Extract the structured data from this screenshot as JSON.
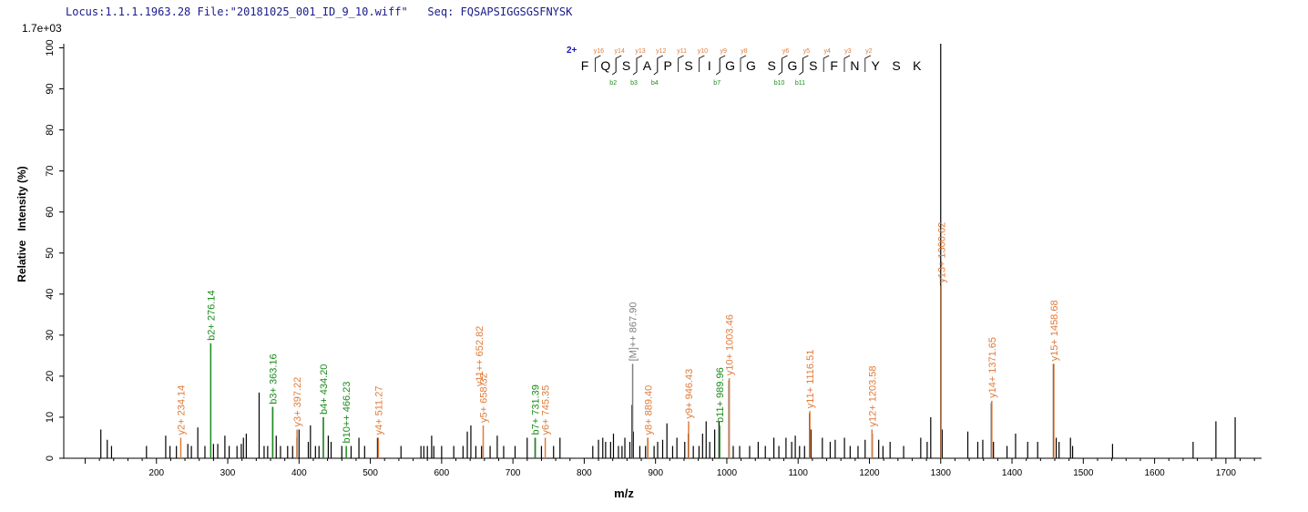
{
  "header": {
    "locus_label": "Locus:1.1.1.1963.28",
    "file_label": "File:\"20181025_001_ID_9_10.wiff\"",
    "seq_label": "Seq:",
    "seq_value": "FQSAPSIGGSGSFNYSK"
  },
  "colors": {
    "peak": "#000000",
    "y_ion": "#e07b39",
    "b_ion": "#1a8c1a",
    "precursor": "#7f7f7f",
    "charge": "#1a1ab4"
  },
  "chart_data": {
    "type": "bar",
    "title": "",
    "scale_label": "1.7e+03",
    "xlabel": "m/z",
    "ylabel": "Relative   Intensity (%)",
    "xlim": [
      70,
      1750
    ],
    "ylim": [
      0,
      101
    ],
    "xticks": [
      200,
      300,
      400,
      500,
      600,
      700,
      800,
      900,
      1000,
      1100,
      1200,
      1300,
      1400,
      1500,
      1600,
      1700
    ],
    "yticks": [
      0,
      10,
      20,
      30,
      40,
      50,
      60,
      70,
      80,
      90,
      100
    ],
    "sequence": {
      "charge": "2+",
      "residues": [
        "F",
        "Q",
        "S",
        "A",
        "P",
        "S",
        "I",
        "G",
        "G",
        "S",
        "G",
        "S",
        "F",
        "N",
        "Y",
        "S",
        "K"
      ],
      "y_labels": [
        "y16",
        "y14",
        "y13",
        "y12",
        "y11",
        "y10",
        "y9",
        "y8",
        "y6",
        "y5",
        "y4",
        "y3",
        "y2"
      ],
      "b_labels": [
        "b2",
        "b3",
        "b4",
        "b7",
        "b10",
        "b11"
      ]
    },
    "annotated_peaks": [
      {
        "mz": 234.14,
        "intensity": 5,
        "label": "y2+ 234.14",
        "ion": "y"
      },
      {
        "mz": 276.14,
        "intensity": 28,
        "label": "b2+ 276.14",
        "ion": "b"
      },
      {
        "mz": 363.16,
        "intensity": 12.5,
        "label": "b3+ 363.16",
        "ion": "b"
      },
      {
        "mz": 397.22,
        "intensity": 7,
        "label": "y3+ 397.22",
        "ion": "y"
      },
      {
        "mz": 434.2,
        "intensity": 10,
        "label": "b4+ 434.20",
        "ion": "b"
      },
      {
        "mz": 466.23,
        "intensity": 3,
        "label": "b10++ 466.23",
        "ion": "b"
      },
      {
        "mz": 511.27,
        "intensity": 5,
        "label": "y4+ 511.27",
        "ion": "y"
      },
      {
        "mz": 658.32,
        "intensity": 8,
        "label": "y5+ 658.32",
        "ion": "y"
      },
      {
        "mz": 731.39,
        "intensity": 5,
        "label": "b7+ 731.39",
        "ion": "b"
      },
      {
        "mz": 745.35,
        "intensity": 5,
        "label": "y6+ 745.35",
        "ion": "y"
      },
      {
        "mz": 867.9,
        "intensity": 23,
        "label": "[M]++ 867.90",
        "ion": "p"
      },
      {
        "mz": 889.4,
        "intensity": 5,
        "label": "y8+ 889.40",
        "ion": "y"
      },
      {
        "mz": 946.43,
        "intensity": 9,
        "label": "y9+ 946.43",
        "ion": "y"
      },
      {
        "mz": 989.96,
        "intensity": 8,
        "label": "b11+ 989.96",
        "ion": "b"
      },
      {
        "mz": 1003.46,
        "intensity": 19.5,
        "label": "y10+ 1003.46",
        "ion": "y"
      },
      {
        "mz": 1116.51,
        "intensity": 11.5,
        "label": "y11+ 1116.51",
        "ion": "y"
      },
      {
        "mz": 1203.58,
        "intensity": 7,
        "label": "y12+ 1203.58",
        "ion": "y"
      },
      {
        "mz": 1300.62,
        "intensity": 42,
        "label": "y13+ 1300.62",
        "ion": "y"
      },
      {
        "mz": 1371.65,
        "intensity": 14,
        "label": "y14+ 1371.65",
        "ion": "y"
      },
      {
        "mz": 1458.68,
        "intensity": 23,
        "label": "y15+ 1458.68",
        "ion": "y"
      }
    ],
    "partial_labels": [
      {
        "mz": 652.5,
        "intensity": 17.5,
        "label": "y11++ 652.82",
        "ion": "y"
      }
    ],
    "peaks": [
      [
        122,
        7
      ],
      [
        131,
        4.5
      ],
      [
        137,
        3
      ],
      [
        186,
        3
      ],
      [
        213,
        5.5
      ],
      [
        219,
        3
      ],
      [
        228,
        3
      ],
      [
        244,
        3.5
      ],
      [
        249,
        3
      ],
      [
        258,
        7.5
      ],
      [
        268,
        3
      ],
      [
        280,
        3.5
      ],
      [
        286,
        3.5
      ],
      [
        296,
        5.5
      ],
      [
        302,
        3
      ],
      [
        313,
        3
      ],
      [
        319,
        3.5
      ],
      [
        322,
        5
      ],
      [
        326,
        6
      ],
      [
        344,
        16
      ],
      [
        351,
        3
      ],
      [
        356,
        3
      ],
      [
        363,
        12.5
      ],
      [
        368,
        5.5
      ],
      [
        374,
        3
      ],
      [
        384,
        3
      ],
      [
        391,
        3
      ],
      [
        397,
        5
      ],
      [
        400,
        7
      ],
      [
        413,
        4
      ],
      [
        416,
        8
      ],
      [
        423,
        3
      ],
      [
        428,
        3
      ],
      [
        434,
        10
      ],
      [
        441,
        5.5
      ],
      [
        445,
        4
      ],
      [
        460,
        3
      ],
      [
        473,
        3
      ],
      [
        484,
        5
      ],
      [
        492,
        3
      ],
      [
        510,
        5
      ],
      [
        511,
        5
      ],
      [
        543,
        3
      ],
      [
        571,
        3
      ],
      [
        575,
        3
      ],
      [
        580,
        3
      ],
      [
        586,
        5.5
      ],
      [
        589,
        3
      ],
      [
        600,
        3
      ],
      [
        617,
        3
      ],
      [
        630,
        3
      ],
      [
        636,
        6.5
      ],
      [
        641,
        8
      ],
      [
        648,
        3
      ],
      [
        656,
        3
      ],
      [
        668,
        3
      ],
      [
        678,
        5.5
      ],
      [
        687,
        3
      ],
      [
        703,
        3
      ],
      [
        720,
        5
      ],
      [
        731,
        5
      ],
      [
        740,
        3
      ],
      [
        757,
        3
      ],
      [
        766,
        5
      ],
      [
        812,
        3
      ],
      [
        820,
        4.5
      ],
      [
        826,
        5
      ],
      [
        830,
        4
      ],
      [
        837,
        4
      ],
      [
        841,
        6
      ],
      [
        848,
        3
      ],
      [
        853,
        3
      ],
      [
        857,
        5
      ],
      [
        864,
        4
      ],
      [
        867,
        13
      ],
      [
        869,
        6.5
      ],
      [
        878,
        3
      ],
      [
        886,
        3
      ],
      [
        889,
        5
      ],
      [
        898,
        3
      ],
      [
        903,
        4
      ],
      [
        910,
        4.5
      ],
      [
        916,
        8.5
      ],
      [
        924,
        3
      ],
      [
        930,
        5
      ],
      [
        941,
        4
      ],
      [
        946,
        6
      ],
      [
        953,
        3
      ],
      [
        961,
        3
      ],
      [
        966,
        6
      ],
      [
        971,
        9
      ],
      [
        976,
        4
      ],
      [
        983,
        7
      ],
      [
        989,
        9
      ],
      [
        1003,
        19
      ],
      [
        1009,
        3
      ],
      [
        1018,
        3
      ],
      [
        1032,
        3
      ],
      [
        1044,
        4
      ],
      [
        1054,
        3
      ],
      [
        1066,
        5
      ],
      [
        1073,
        3
      ],
      [
        1083,
        5
      ],
      [
        1091,
        4
      ],
      [
        1096,
        5.5
      ],
      [
        1102,
        3
      ],
      [
        1109,
        3
      ],
      [
        1116,
        11
      ],
      [
        1118,
        7
      ],
      [
        1134,
        5
      ],
      [
        1145,
        4
      ],
      [
        1152,
        4.5
      ],
      [
        1165,
        5
      ],
      [
        1173,
        3
      ],
      [
        1184,
        3
      ],
      [
        1194,
        4.5
      ],
      [
        1204,
        6
      ],
      [
        1213,
        4.5
      ],
      [
        1219,
        3
      ],
      [
        1229,
        4
      ],
      [
        1248,
        3
      ],
      [
        1272,
        5
      ],
      [
        1281,
        4
      ],
      [
        1286,
        10
      ],
      [
        1300,
        101
      ],
      [
        1302,
        7
      ],
      [
        1338,
        6.5
      ],
      [
        1352,
        4
      ],
      [
        1359,
        4.5
      ],
      [
        1371,
        13.5
      ],
      [
        1374,
        4
      ],
      [
        1393,
        3
      ],
      [
        1405,
        6
      ],
      [
        1422,
        4
      ],
      [
        1436,
        4
      ],
      [
        1458,
        23
      ],
      [
        1462,
        5
      ],
      [
        1466,
        4
      ],
      [
        1482,
        5
      ],
      [
        1485,
        3
      ],
      [
        1541,
        3.5
      ],
      [
        1654,
        4
      ],
      [
        1686,
        9
      ],
      [
        1713,
        10
      ]
    ]
  }
}
